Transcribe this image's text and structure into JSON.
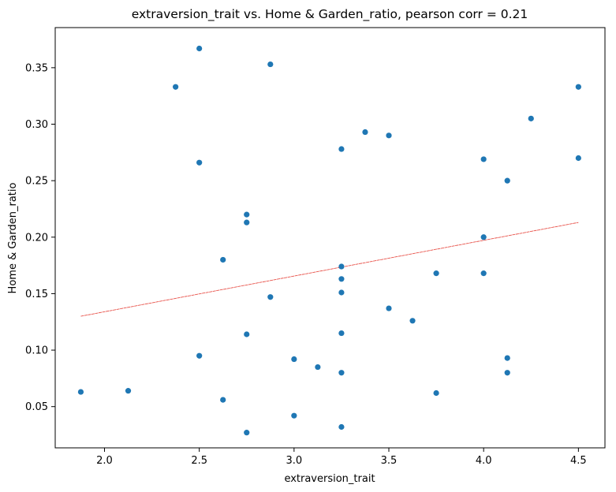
{
  "chart_data": {
    "type": "scatter",
    "title": "extraversion_trait vs. Home & Garden_ratio, pearson corr = 0.21",
    "xlabel": "extraversion_trait",
    "ylabel": "Home & Garden_ratio",
    "xlim": [
      1.74,
      4.64
    ],
    "ylim": [
      0.0135,
      0.3855
    ],
    "xticks": [
      2.0,
      2.5,
      3.0,
      3.5,
      4.0,
      4.5
    ],
    "xtick_labels": [
      "2.0",
      "2.5",
      "3.0",
      "3.5",
      "4.0",
      "4.5"
    ],
    "yticks": [
      0.05,
      0.1,
      0.15,
      0.2,
      0.25,
      0.3,
      0.35
    ],
    "ytick_labels": [
      "0.05",
      "0.10",
      "0.15",
      "0.20",
      "0.25",
      "0.30",
      "0.35"
    ],
    "grid": false,
    "point_color": "#1f77b4",
    "trend_color": "#e8524a",
    "trendline": {
      "x": [
        1.875,
        4.5
      ],
      "y": [
        0.13,
        0.213
      ]
    },
    "points": [
      {
        "x": 1.875,
        "y": 0.063
      },
      {
        "x": 2.125,
        "y": 0.064
      },
      {
        "x": 2.375,
        "y": 0.333
      },
      {
        "x": 2.5,
        "y": 0.367
      },
      {
        "x": 2.5,
        "y": 0.266
      },
      {
        "x": 2.5,
        "y": 0.095
      },
      {
        "x": 2.625,
        "y": 0.18
      },
      {
        "x": 2.625,
        "y": 0.056
      },
      {
        "x": 2.75,
        "y": 0.22
      },
      {
        "x": 2.75,
        "y": 0.213
      },
      {
        "x": 2.75,
        "y": 0.114
      },
      {
        "x": 2.75,
        "y": 0.027
      },
      {
        "x": 2.875,
        "y": 0.353
      },
      {
        "x": 2.875,
        "y": 0.147
      },
      {
        "x": 3.0,
        "y": 0.092
      },
      {
        "x": 3.0,
        "y": 0.042
      },
      {
        "x": 3.125,
        "y": 0.085
      },
      {
        "x": 3.25,
        "y": 0.278
      },
      {
        "x": 3.25,
        "y": 0.174
      },
      {
        "x": 3.25,
        "y": 0.163
      },
      {
        "x": 3.25,
        "y": 0.151
      },
      {
        "x": 3.25,
        "y": 0.115
      },
      {
        "x": 3.25,
        "y": 0.08
      },
      {
        "x": 3.25,
        "y": 0.032
      },
      {
        "x": 3.375,
        "y": 0.293
      },
      {
        "x": 3.5,
        "y": 0.29
      },
      {
        "x": 3.5,
        "y": 0.137
      },
      {
        "x": 3.625,
        "y": 0.126
      },
      {
        "x": 3.75,
        "y": 0.168
      },
      {
        "x": 3.75,
        "y": 0.062
      },
      {
        "x": 4.0,
        "y": 0.269
      },
      {
        "x": 4.0,
        "y": 0.2
      },
      {
        "x": 4.0,
        "y": 0.168
      },
      {
        "x": 4.125,
        "y": 0.25
      },
      {
        "x": 4.125,
        "y": 0.093
      },
      {
        "x": 4.125,
        "y": 0.08
      },
      {
        "x": 4.25,
        "y": 0.305
      },
      {
        "x": 4.5,
        "y": 0.333
      },
      {
        "x": 4.5,
        "y": 0.27
      }
    ]
  }
}
